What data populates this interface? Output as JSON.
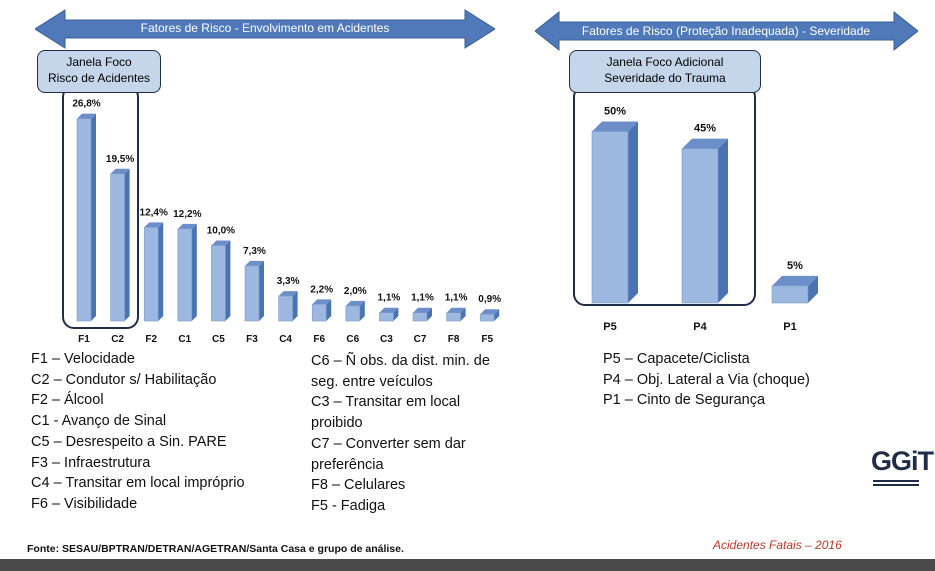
{
  "left_panel": {
    "arrow_title": "Fatores  de Risco - Envolvimento em Acidentes",
    "window_label_line1": "Janela Foco",
    "window_label_line2": "Risco de Acidentes",
    "legend_col1": [
      "F1 – Velocidade",
      "C2 – Condutor s/ Habilitação",
      "F2 – Álcool",
      "C1 -  Avanço de Sinal",
      "C5 – Desrespeito a Sin. PARE",
      "F3 – Infraestrutura",
      "C4 – Transitar em local impróprio",
      "F6 – Visibilidade"
    ],
    "legend_col2": [
      "C6 – Ñ obs. da dist. min. de",
      "seg. entre veículos",
      "C3 – Transitar em local",
      "proibido",
      "C7 – Converter sem dar",
      "preferência",
      "F8 – Celulares",
      "F5 - Fadiga"
    ]
  },
  "right_panel": {
    "arrow_title": "Fatores  de Risco  (Proteção Inadequada) - Severidade",
    "window_label_line1": "Janela Foco Adicional",
    "window_label_line2": "Severidade do Trauma",
    "legend": [
      "P5 – Capacete/Ciclista",
      "P4 – Obj. Lateral a Via (choque)",
      "P1 – Cinto de Segurança"
    ]
  },
  "source": "Fonte: SESAU/BPTRAN/DETRAN/AGETRAN/Santa Casa e grupo de análise.",
  "footer_note": "Acidentes Fatais – 2016",
  "logo_text": "GGiT",
  "colors": {
    "bar_front": "#9cb7e0",
    "bar_side": "#4a73b3",
    "bar_top": "#6d8fc9",
    "arrow": "#4f79b8",
    "frame": "#1f2d4a"
  },
  "chart_data": [
    {
      "type": "bar",
      "title": "Fatores  de Risco - Envolvimento em Acidentes",
      "categories": [
        "F1",
        "C2",
        "F2",
        "C1",
        "C5",
        "F3",
        "C4",
        "F6",
        "C6",
        "C3",
        "C7",
        "F8",
        "F5"
      ],
      "values": [
        26.8,
        19.5,
        12.4,
        12.2,
        10.0,
        7.3,
        3.3,
        2.2,
        2.0,
        1.1,
        1.1,
        1.1,
        0.9
      ],
      "value_labels": [
        "26,8%",
        "19,5%",
        "12,4%",
        "12,2%",
        "10,0%",
        "7,3%",
        "3,3%",
        "2,2%",
        "2,0%",
        "1,1%",
        "1,1%",
        "1,1%",
        "0,9%"
      ],
      "unit": "%"
    },
    {
      "type": "bar",
      "title": "Fatores  de Risco  (Proteção Inadequada) - Severidade",
      "categories": [
        "P5",
        "P4",
        "P1"
      ],
      "values": [
        50,
        45,
        5
      ],
      "value_labels": [
        "50%",
        "45%",
        "5%"
      ],
      "unit": "%"
    }
  ]
}
